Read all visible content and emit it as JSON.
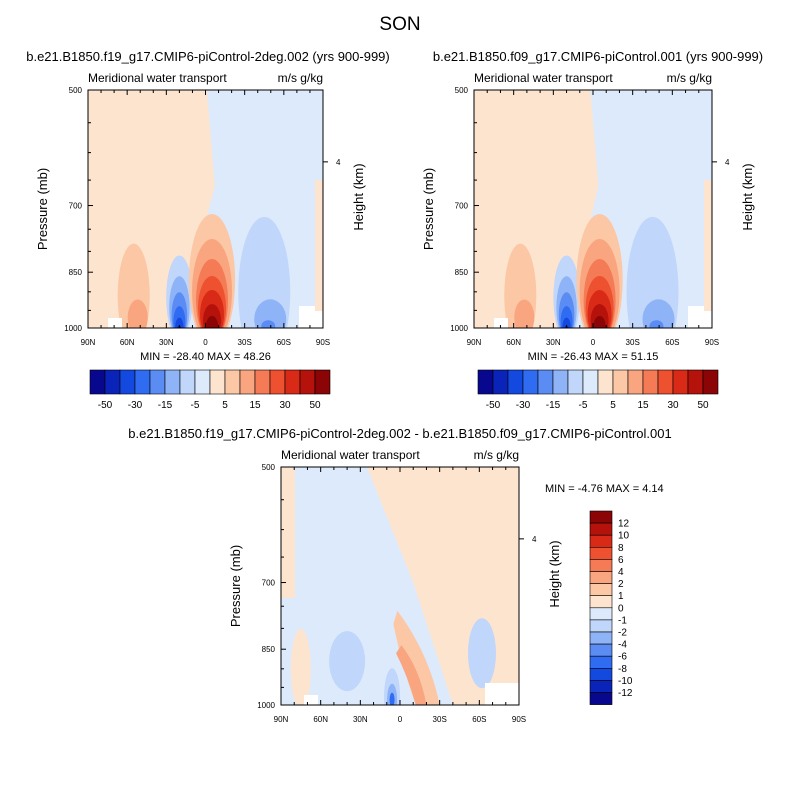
{
  "page": {
    "title": "SON"
  },
  "colors": {
    "neg": [
      "#08088f",
      "#0a23b8",
      "#1449e0",
      "#2f6cf2",
      "#5a8cf4",
      "#8eb3f7",
      "#c0d6fa",
      "#ddeafc"
    ],
    "pos": [
      "#fde4cf",
      "#fcc7a5",
      "#f9a57f",
      "#f47b55",
      "#ed5130",
      "#d92a17",
      "#b5120c",
      "#8b0406"
    ]
  },
  "panels": [
    {
      "title": "b.e21.B1850.f19_g17.CMIP6-piControl-2deg.002 (yrs 900-999)",
      "left_label": "Meridional water transport",
      "right_label": "m/s g/kg",
      "stats": "MIN = -28.40  MAX =  48.26"
    },
    {
      "title": "b.e21.B1850.f09_g17.CMIP6-piControl.001 (yrs 900-999)",
      "left_label": "Meridional water transport",
      "right_label": "m/s g/kg",
      "stats": "MIN = -26.43  MAX =  51.15"
    },
    {
      "title": "b.e21.B1850.f19_g17.CMIP6-piControl-2deg.002 - b.e21.B1850.f09_g17.CMIP6-piControl.001",
      "left_label": "Meridional water transport",
      "right_label": "m/s g/kg",
      "stats": "MIN = -4.76  MAX =  4.14"
    }
  ],
  "chart_data": [
    {
      "type": "heatmap",
      "title": "b.e21.B1850.f19_g17.CMIP6-piControl-2deg.002 (yrs 900-999)",
      "xlabel": "",
      "ylabel": "Pressure (mb)",
      "y2label": "Height (km)",
      "x_ticks": [
        "90N",
        "60N",
        "30N",
        "0",
        "30S",
        "60S",
        "90S"
      ],
      "y_ticks": [
        500,
        700,
        850,
        1000
      ],
      "y2_ticks": [
        4
      ],
      "ylim": [
        1000,
        500
      ],
      "y_scale": "log",
      "x_range": [
        90,
        -90
      ],
      "min": -28.4,
      "max": 48.26,
      "colorbar_labels": [
        "-50",
        "-30",
        "-15",
        "-5",
        "5",
        "15",
        "30",
        "50"
      ],
      "features": [
        {
          "sign": "pos",
          "lat": 5,
          "p": 960,
          "peak": 48.26,
          "desc": "strong positive core just south of equator near surface"
        },
        {
          "sign": "neg",
          "lat": 20,
          "p": 980,
          "peak": -28.4,
          "desc": "negative core near 20N near surface"
        },
        {
          "sign": "neg",
          "lat": -45,
          "p": 900,
          "peak": -10,
          "desc": "negative lobe 40S-60S"
        },
        {
          "sign": "pos",
          "lat": 55,
          "p": 900,
          "peak": 10,
          "desc": "positive lobe 50N-70N"
        }
      ]
    },
    {
      "type": "heatmap",
      "title": "b.e21.B1850.f09_g17.CMIP6-piControl.001 (yrs 900-999)",
      "xlabel": "",
      "ylabel": "Pressure (mb)",
      "y2label": "Height (km)",
      "x_ticks": [
        "90N",
        "60N",
        "30N",
        "0",
        "30S",
        "60S",
        "90S"
      ],
      "y_ticks": [
        500,
        700,
        850,
        1000
      ],
      "y2_ticks": [
        4
      ],
      "ylim": [
        1000,
        500
      ],
      "y_scale": "log",
      "x_range": [
        90,
        -90
      ],
      "min": -26.43,
      "max": 51.15,
      "colorbar_labels": [
        "-50",
        "-30",
        "-15",
        "-5",
        "5",
        "15",
        "30",
        "50"
      ],
      "features": [
        {
          "sign": "pos",
          "lat": 5,
          "p": 960,
          "peak": 51.15,
          "desc": "strong positive core just south of equator near surface"
        },
        {
          "sign": "neg",
          "lat": 20,
          "p": 980,
          "peak": -26.43,
          "desc": "negative core near 20N near surface"
        },
        {
          "sign": "neg",
          "lat": -45,
          "p": 900,
          "peak": -10,
          "desc": "negative lobe 40S-60S"
        },
        {
          "sign": "pos",
          "lat": 55,
          "p": 900,
          "peak": 10,
          "desc": "positive lobe 50N-70N"
        }
      ]
    },
    {
      "type": "heatmap",
      "title": "b.e21.B1850.f19_g17.CMIP6-piControl-2deg.002 - b.e21.B1850.f09_g17.CMIP6-piControl.001",
      "xlabel": "",
      "ylabel": "Pressure (mb)",
      "y2label": "Height (km)",
      "x_ticks": [
        "90N",
        "60N",
        "30N",
        "0",
        "30S",
        "60S",
        "90S"
      ],
      "y_ticks": [
        500,
        700,
        850,
        1000
      ],
      "y2_ticks": [
        4
      ],
      "ylim": [
        1000,
        500
      ],
      "y_scale": "log",
      "x_range": [
        90,
        -90
      ],
      "min": -4.76,
      "max": 4.14,
      "colorbar_labels": [
        "12",
        "10",
        "8",
        "6",
        "4",
        "2",
        "1",
        "0",
        "-1",
        "-2",
        "-4",
        "-6",
        "-8",
        "-10",
        "-12"
      ],
      "features": [
        {
          "sign": "pos",
          "lat": -8,
          "p": 900,
          "peak": 4.14,
          "desc": "positive band tilting from equator to 30S"
        },
        {
          "sign": "neg",
          "lat": 5,
          "p": 960,
          "peak": -4.76,
          "desc": "negative core near equator at surface"
        }
      ]
    }
  ]
}
